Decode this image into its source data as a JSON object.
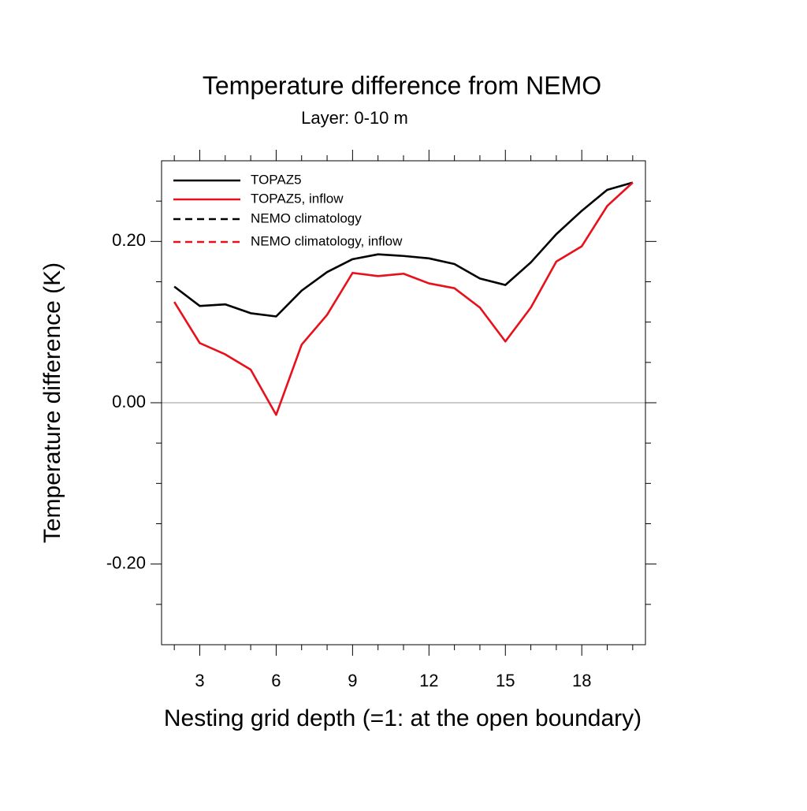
{
  "chart_data": {
    "type": "line",
    "title": "Temperature difference from NEMO",
    "subtitle": "Layer: 0-10 m",
    "x_label": "Nesting grid depth (=1: at the open boundary)",
    "y_label": "Temperature difference (K)",
    "x": [
      2,
      3,
      4,
      5,
      6,
      7,
      8,
      9,
      10,
      11,
      12,
      13,
      14,
      15,
      16,
      17,
      18,
      19,
      20
    ],
    "series": [
      {
        "name": "TOPAZ5",
        "color": "#000000",
        "dash": false,
        "values": [
          0.144,
          0.12,
          0.122,
          0.111,
          0.107,
          0.139,
          0.162,
          0.178,
          0.184,
          0.182,
          0.179,
          0.172,
          0.154,
          0.146,
          0.174,
          0.209,
          0.238,
          0.264,
          0.273
        ]
      },
      {
        "name": "TOPAZ5, inflow",
        "color": "#e8101a",
        "dash": false,
        "values": [
          0.125,
          0.074,
          0.06,
          0.041,
          -0.015,
          0.072,
          0.109,
          0.161,
          0.157,
          0.16,
          0.148,
          0.142,
          0.118,
          0.076,
          0.118,
          0.175,
          0.194,
          0.244,
          0.273
        ]
      },
      {
        "name": "NEMO climatology",
        "color": "#000000",
        "dash": true,
        "values": [
          null,
          null,
          null,
          null,
          null,
          null,
          null,
          null,
          null,
          null,
          null,
          null,
          null,
          null,
          null,
          null,
          null,
          null,
          null
        ]
      },
      {
        "name": "NEMO climatology, inflow",
        "color": "#e8101a",
        "dash": true,
        "values": [
          null,
          null,
          null,
          null,
          null,
          null,
          null,
          null,
          null,
          null,
          null,
          null,
          null,
          null,
          null,
          null,
          null,
          null,
          null
        ]
      }
    ],
    "xlim": [
      1.5,
      20.5
    ],
    "xticks": [
      3,
      6,
      9,
      12,
      15,
      18
    ],
    "xminorticks": [
      2,
      4,
      5,
      7,
      8,
      10,
      11,
      13,
      14,
      16,
      17,
      19,
      20
    ],
    "ylim": [
      -0.3,
      0.3
    ],
    "yticks": [
      {
        "value": -0.2,
        "label": "-0.20"
      },
      {
        "value": 0,
        "label": "0.00"
      },
      {
        "value": 0.2,
        "label": "0.20"
      }
    ],
    "yminorticks": [
      -0.25,
      -0.15,
      -0.1,
      -0.05,
      0.05,
      0.1,
      0.15,
      0.25
    ],
    "reference_line": 0,
    "legend": "upper left"
  }
}
